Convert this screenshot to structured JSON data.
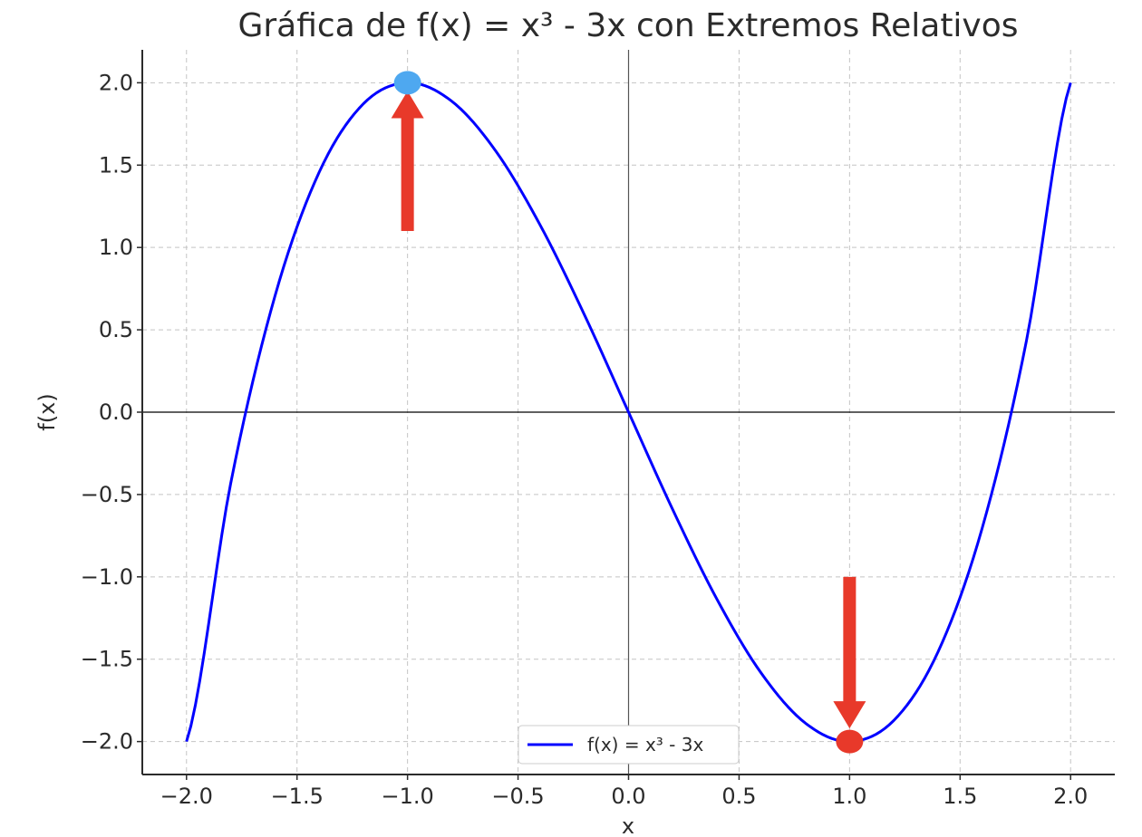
{
  "chart_data": {
    "type": "line",
    "title": "Gráfica de f(x) = x³ - 3x con Extremos Relativos",
    "xlabel": "x",
    "ylabel": "f(x)",
    "xlim": [
      -2.2,
      2.2
    ],
    "ylim": [
      -2.2,
      2.2
    ],
    "x_ticks": [
      -2.0,
      -1.5,
      -1.0,
      -0.5,
      0.0,
      0.5,
      1.0,
      1.5,
      2.0
    ],
    "x_tick_labels": [
      "−2.0",
      "−1.5",
      "−1.0",
      "−0.5",
      "0.0",
      "0.5",
      "1.0",
      "1.5",
      "2.0"
    ],
    "y_ticks": [
      2.0,
      1.5,
      1.0,
      0.5,
      0.0,
      -0.5,
      -1.0,
      -1.5,
      -2.0
    ],
    "y_tick_labels": [
      "2.0",
      "1.5",
      "1.0",
      "0.5",
      "0.0",
      "−0.5",
      "−1.0",
      "−1.5",
      "−2.0"
    ],
    "grid": true,
    "legend_position": "bottom-center",
    "series": [
      {
        "name": "f(x) = x³ - 3x",
        "color": "#0000ff",
        "x": [
          -2.0,
          -1.8,
          -1.6,
          -1.4,
          -1.2,
          -1.0,
          -0.8,
          -0.6,
          -0.4,
          -0.2,
          0.0,
          0.2,
          0.4,
          0.6,
          0.8,
          1.0,
          1.2,
          1.4,
          1.6,
          1.8,
          2.0
        ],
        "y": [
          -2.0,
          -0.432,
          0.704,
          1.456,
          1.872,
          2.0,
          1.888,
          1.584,
          1.136,
          0.592,
          0.0,
          -0.592,
          -1.136,
          -1.584,
          -1.888,
          -2.0,
          -1.872,
          -1.456,
          -0.704,
          0.432,
          2.0
        ]
      }
    ],
    "extrema": [
      {
        "kind": "max",
        "x": -1.0,
        "y": 2.0,
        "color": "#4ea8f0"
      },
      {
        "kind": "min",
        "x": 1.0,
        "y": -2.0,
        "color": "#e8392a"
      }
    ],
    "annotations": [
      {
        "kind": "arrow",
        "color": "#e8392a",
        "from": [
          -1.0,
          1.1
        ],
        "to": [
          -1.0,
          1.95
        ]
      },
      {
        "kind": "arrow",
        "color": "#e8392a",
        "from": [
          1.0,
          -1.0
        ],
        "to": [
          1.0,
          -1.92
        ]
      }
    ]
  }
}
